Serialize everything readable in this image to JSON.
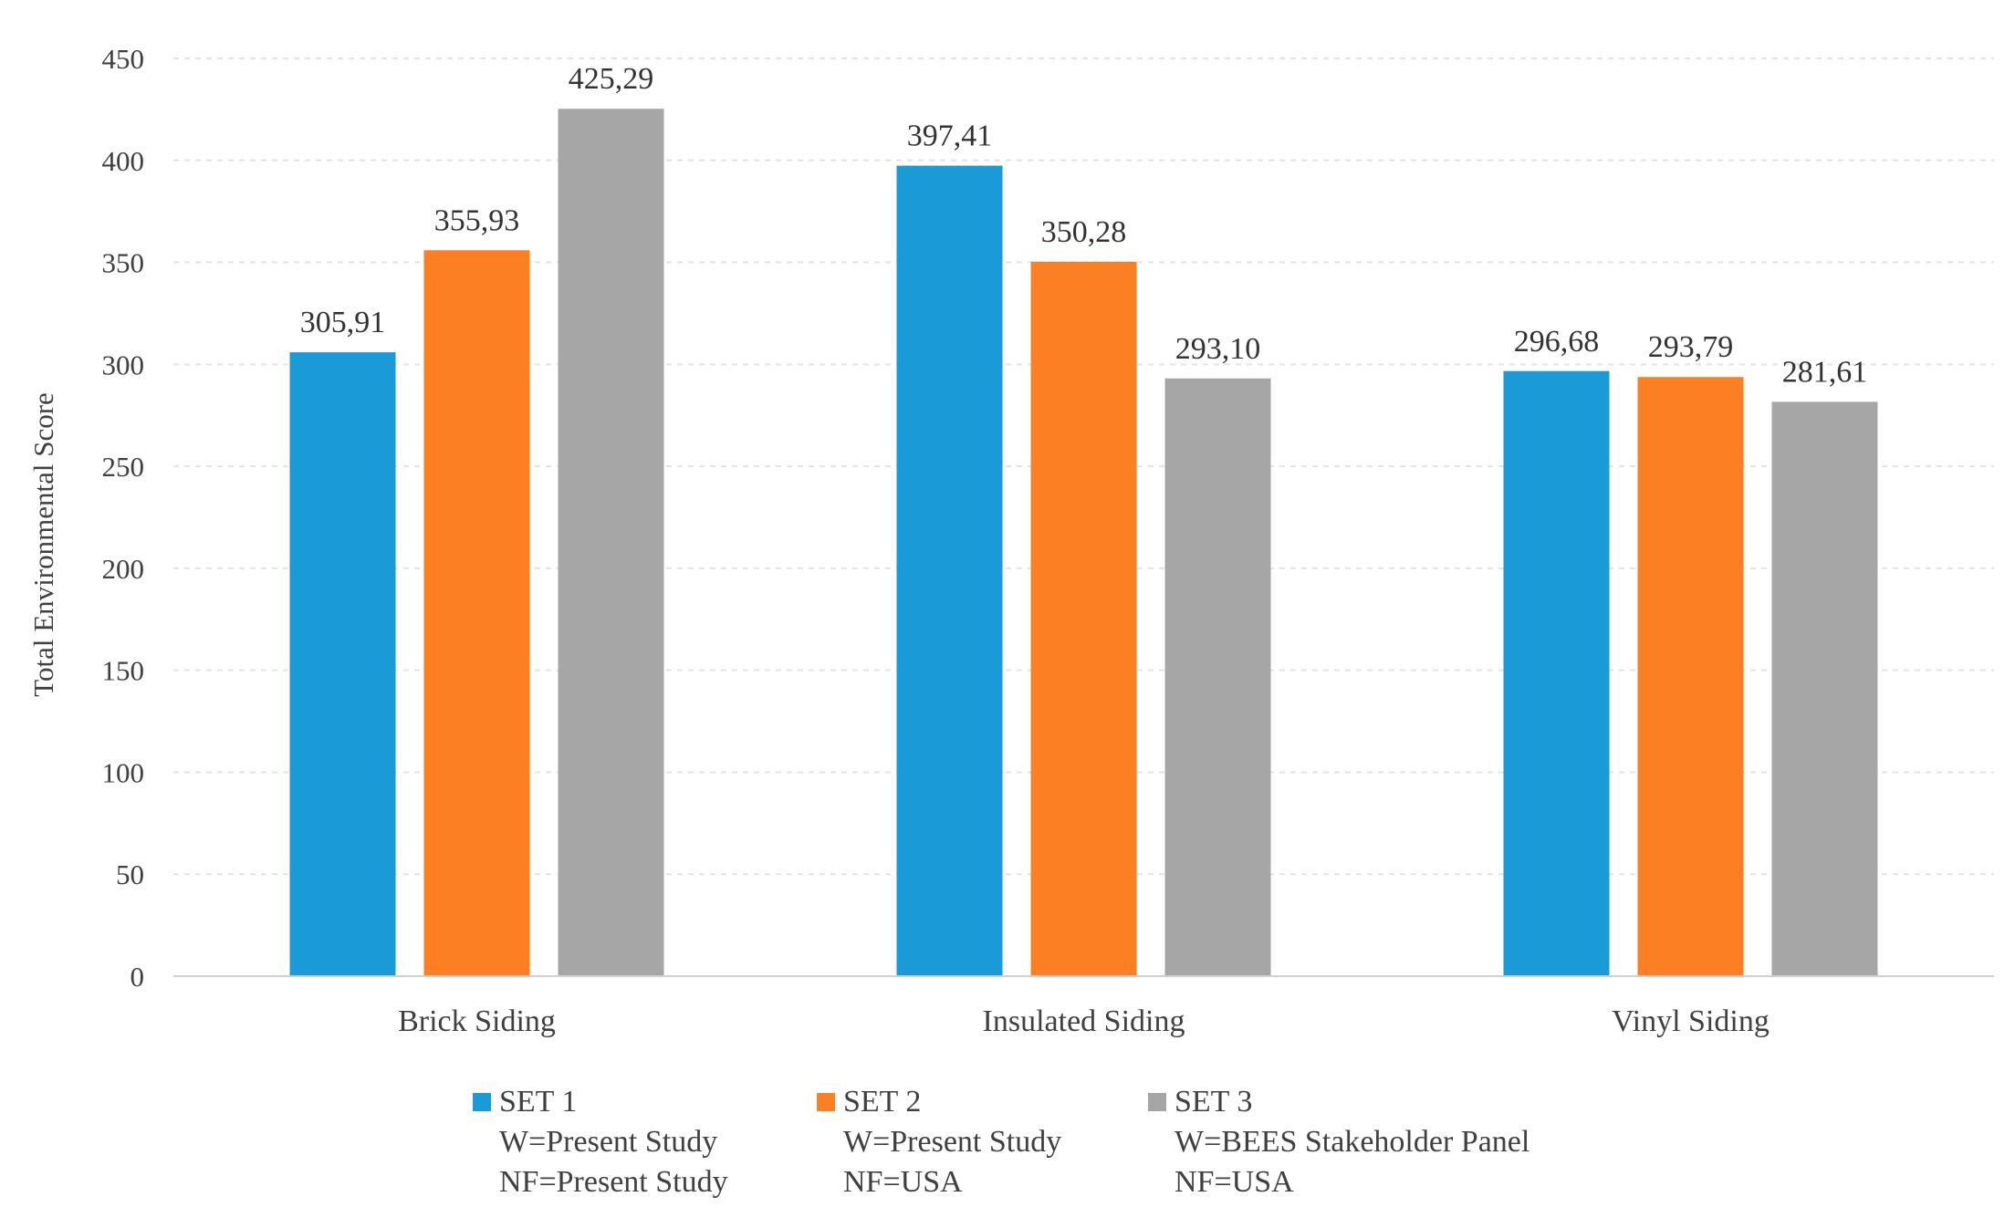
{
  "chart_data": {
    "type": "bar",
    "categories": [
      "Brick Siding",
      "Insulated Siding",
      "Vinyl Siding"
    ],
    "series": [
      {
        "name": "SET 1",
        "label_lines": [
          "W=Present Study",
          "NF=Present Study"
        ],
        "color": "#1a9ad6",
        "values": [
          305.91,
          397.41,
          296.68
        ],
        "value_labels": [
          "305,91",
          "397,41",
          "296,68"
        ]
      },
      {
        "name": "SET 2",
        "label_lines": [
          "W=Present Study",
          "NF=USA"
        ],
        "color": "#fd7f23",
        "values": [
          355.93,
          350.28,
          293.79
        ],
        "value_labels": [
          "355,93",
          "350,28",
          "293,79"
        ]
      },
      {
        "name": "SET 3",
        "label_lines": [
          "W=BEES Stakeholder Panel",
          "NF=USA"
        ],
        "color": "#a6a6a6",
        "values": [
          425.29,
          293.1,
          281.61
        ],
        "value_labels": [
          "425,29",
          "293,10",
          "281,61"
        ]
      }
    ],
    "title": "",
    "xlabel": "",
    "ylabel": "Total Environmental Score",
    "ylim": [
      0,
      450
    ],
    "yticks": [
      0,
      50,
      100,
      150,
      200,
      250,
      300,
      350,
      400,
      450
    ],
    "grid": true,
    "legend_position": "bottom"
  }
}
